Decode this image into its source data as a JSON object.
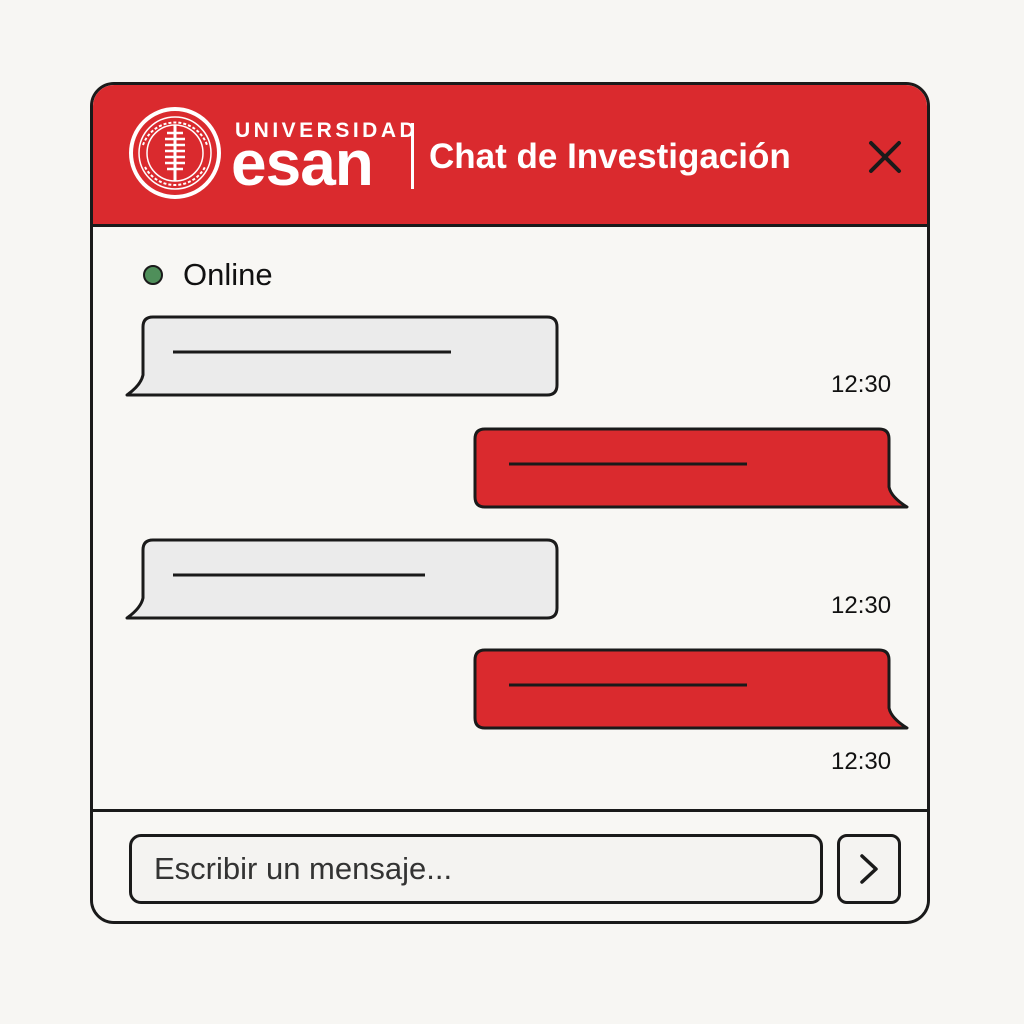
{
  "header": {
    "brand_top": "UNIVERSIDAD",
    "brand_main": "esan",
    "title": "Chat de Investigación",
    "close_icon": "close-icon",
    "seal_icon": "university-seal-logo",
    "seal_text_top": "FEICIEMEREBEII",
    "seal_text_bottom": "BEINDIJHFA"
  },
  "status": {
    "label": "Online",
    "dot_color": "#4f8f5a"
  },
  "messages": [
    {
      "direction": "received",
      "time": "12:30"
    },
    {
      "direction": "sent",
      "time": ""
    },
    {
      "direction": "received",
      "time": "12:30"
    },
    {
      "direction": "sent",
      "time": "12:30"
    }
  ],
  "composer": {
    "placeholder": "Escribir un mensaje...",
    "value": "",
    "send_icon": "chevron-right-icon"
  },
  "colors": {
    "brand_red": "#da2a2e",
    "received_bubble": "#ebebeb",
    "sent_bubble": "#da2a2e",
    "outline": "#1a1a1a"
  }
}
